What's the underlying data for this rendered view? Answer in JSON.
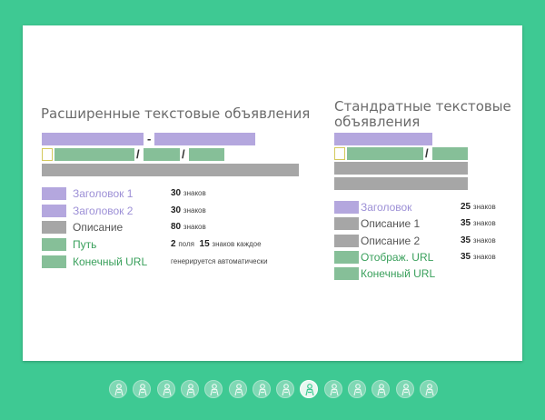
{
  "extended": {
    "title": "Расширенные текстовые объявления",
    "sep_dash": "-",
    "sep_slash": "/",
    "legend": [
      {
        "label": "Заголовок 1",
        "num": "30",
        "unit": "знаков",
        "color": "#b4a7de"
      },
      {
        "label": "Заголовок 2",
        "num": "30",
        "unit": "знаков",
        "color": "#b4a7de"
      },
      {
        "label": "Описание",
        "num": "80",
        "unit": "знаков",
        "color": "#a6a6a6"
      },
      {
        "label": "Путь",
        "num": "2",
        "unit": "поля",
        "num2": "15",
        "unit2": "знаков каждое",
        "color": "#86bf98"
      },
      {
        "label": "Конечный URL",
        "text": "генерируется автоматически",
        "color": "#86bf98"
      }
    ]
  },
  "standard": {
    "title_line1": "Стандратные текстовые",
    "title_line2": "объявления",
    "sep_slash": "/",
    "legend": [
      {
        "label": "Заголовок",
        "num": "25",
        "unit": "знаков",
        "color": "#b4a7de"
      },
      {
        "label": "Описание 1",
        "num": "35",
        "unit": "знаков",
        "color": "#a6a6a6"
      },
      {
        "label": "Описание 2",
        "num": "35",
        "unit": "знаков",
        "color": "#a6a6a6"
      },
      {
        "label": "Отображ. URL",
        "num": "35",
        "unit": "знаков",
        "color": "#86bf98"
      },
      {
        "label": "Конечный URL",
        "color": "#86bf98"
      }
    ]
  },
  "pager": {
    "count": 14,
    "active_index": 8,
    "icon": "figure-icon"
  }
}
